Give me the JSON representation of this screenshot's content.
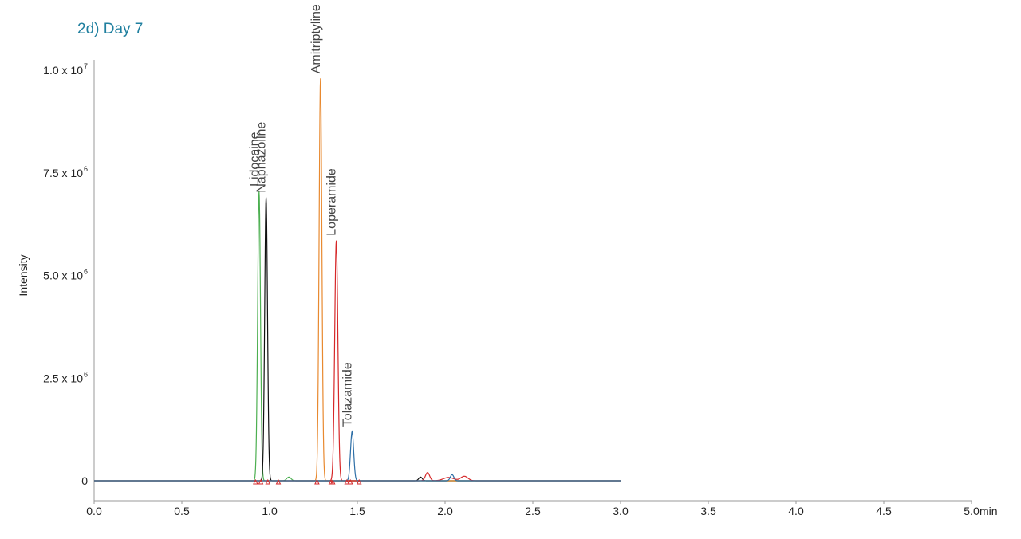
{
  "chart_data": {
    "type": "line",
    "title": "2d) Day 7",
    "xlabel": "min",
    "ylabel": "Intensity",
    "xlim": [
      0,
      5
    ],
    "ylim": [
      0,
      10000000
    ],
    "x_ticks": [
      "0.0",
      "0.5",
      "1.0",
      "1.5",
      "2.0",
      "2.5",
      "3.0",
      "3.5",
      "4.0",
      "4.5",
      "5.0"
    ],
    "y_ticks": [
      {
        "value": 0,
        "mantissa": "0",
        "exponent": ""
      },
      {
        "value": 2500000,
        "mantissa": "2.5 x 10",
        "exponent": "6"
      },
      {
        "value": 5000000,
        "mantissa": "5.0 x 10",
        "exponent": "6"
      },
      {
        "value": 7500000,
        "mantissa": "7.5 x 10",
        "exponent": "6"
      },
      {
        "value": 10000000,
        "mantissa": "1.0 x 10",
        "exponent": "7"
      }
    ],
    "trace_range": [
      0,
      3.0
    ],
    "series": [
      {
        "compound": "Lidocaine",
        "color": "#4caf50",
        "rt": 0.94,
        "height": 7050000,
        "sigma": 0.008
      },
      {
        "compound": "Naphazoline",
        "color": "#111111",
        "rt": 0.98,
        "height": 6900000,
        "sigma": 0.008
      },
      {
        "compound": "Amitriptyline",
        "color": "#e8892f",
        "rt": 1.29,
        "height": 9800000,
        "sigma": 0.008
      },
      {
        "compound": "Loperamide",
        "color": "#d62728",
        "rt": 1.38,
        "height": 5850000,
        "sigma": 0.009
      },
      {
        "compound": "Tolazamide",
        "color": "#2e6fa7",
        "rt": 1.47,
        "height": 1200000,
        "sigma": 0.009
      }
    ],
    "minor_peaks": [
      {
        "color": "#4caf50",
        "rt": 1.11,
        "height": 90000,
        "sigma": 0.012
      },
      {
        "color": "#111111",
        "rt": 1.86,
        "height": 90000,
        "sigma": 0.01
      },
      {
        "color": "#d62728",
        "rt": 1.9,
        "height": 200000,
        "sigma": 0.012
      },
      {
        "color": "#d62728",
        "rt": 2.02,
        "height": 80000,
        "sigma": 0.03
      },
      {
        "color": "#2e6fa7",
        "rt": 2.04,
        "height": 150000,
        "sigma": 0.01
      },
      {
        "color": "#d62728",
        "rt": 2.11,
        "height": 110000,
        "sigma": 0.02
      }
    ],
    "integration_markers": {
      "color": "#d62728",
      "positions": [
        0.92,
        0.95,
        0.99,
        1.05,
        1.27,
        1.35,
        1.36,
        1.44,
        1.46,
        1.51
      ]
    }
  }
}
